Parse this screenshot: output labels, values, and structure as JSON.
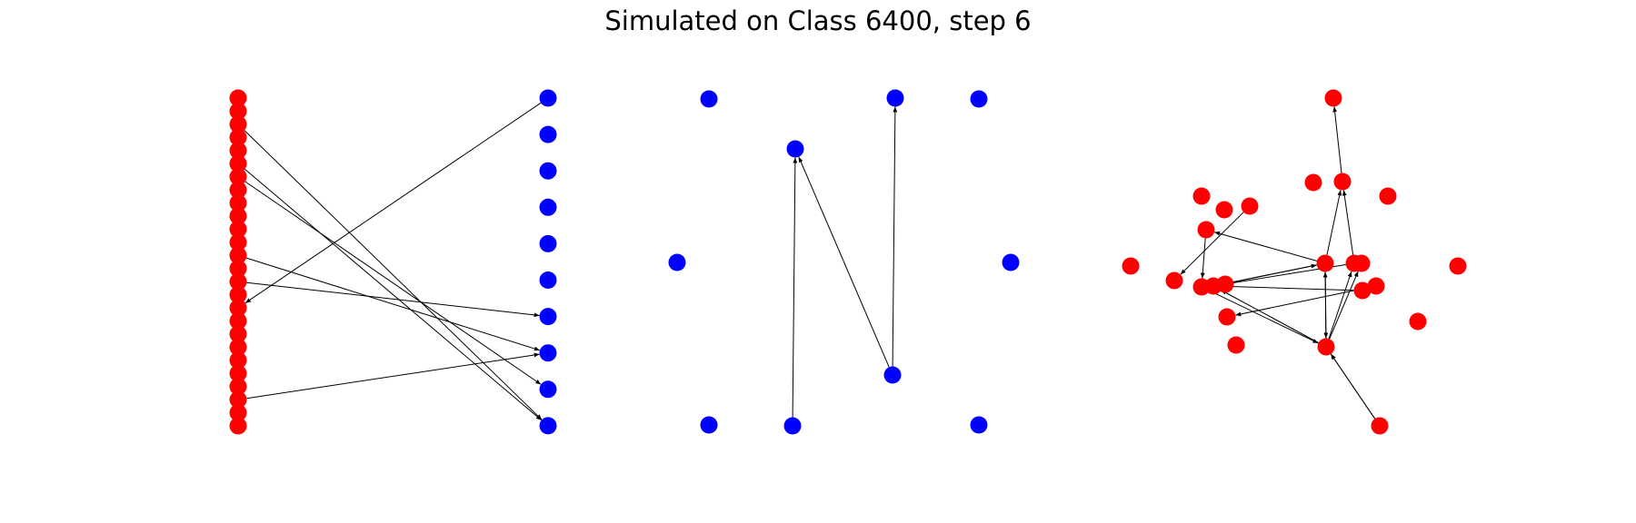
{
  "title": "Simulated on Class 6400, step 6",
  "colors": {
    "red_node": "#ff0000",
    "blue_node": "#0000ff",
    "edge": "#000000"
  },
  "panels": [
    {
      "name": "bipartite-panel",
      "type": "directed-graph",
      "description_layout": "bipartite"
    },
    {
      "name": "circle-panel",
      "type": "directed-graph",
      "description_layout": "ring"
    },
    {
      "name": "spring-panel",
      "type": "directed-graph",
      "description_layout": "force-directed"
    }
  ]
}
